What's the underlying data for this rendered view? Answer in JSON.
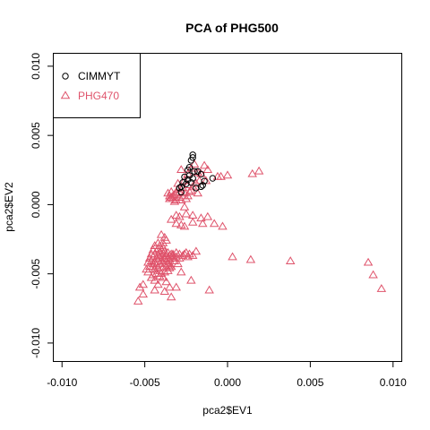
{
  "chart_data": {
    "type": "scatter",
    "title": "PCA of PHG500",
    "xlabel": "pca2$EV1",
    "ylabel": "pca2$EV2",
    "xlim": [
      -0.0105,
      0.0105
    ],
    "ylim": [
      -0.0113,
      0.0109
    ],
    "x_ticks": [
      "-0.010",
      "-0.005",
      "0.000",
      "0.005",
      "0.010"
    ],
    "x_tick_values": [
      -0.01,
      -0.005,
      0.0,
      0.005,
      0.01
    ],
    "y_ticks": [
      "-0.010",
      "-0.005",
      "0.000",
      "0.005",
      "0.010"
    ],
    "y_tick_values": [
      -0.01,
      -0.005,
      0.0,
      0.005,
      0.01
    ],
    "grid": false,
    "legend_position": "top-left",
    "series": [
      {
        "name": "PHG470",
        "marker": "triangle",
        "color": "#DF536B",
        "points": [
          [
            -0.0028,
            0.0025
          ],
          [
            -0.0024,
            0.0022
          ],
          [
            -0.0022,
            0.0026
          ],
          [
            -0.002,
            0.0029
          ],
          [
            -0.0018,
            0.0023
          ],
          [
            -0.0016,
            0.0022
          ],
          [
            -0.0014,
            0.0028
          ],
          [
            -0.0012,
            0.0025
          ],
          [
            -0.0017,
            0.0017
          ],
          [
            -0.0013,
            0.0017
          ],
          [
            -0.0026,
            0.0017
          ],
          [
            -0.0024,
            0.0014
          ],
          [
            -0.0022,
            0.001
          ],
          [
            -0.0027,
            0.0012
          ],
          [
            -0.0029,
            0.0009
          ],
          [
            -0.003,
            0.0011
          ],
          [
            -0.0031,
            0.0008
          ],
          [
            -0.0032,
            0.0007
          ],
          [
            -0.0033,
            0.0006
          ],
          [
            -0.0034,
            0.0005
          ],
          [
            -0.0035,
            0.0004
          ],
          [
            -0.0033,
            0.0004
          ],
          [
            -0.0031,
            0.0003
          ],
          [
            -0.0029,
            0.0005
          ],
          [
            -0.0028,
            0.0003
          ],
          [
            -0.0027,
            0.0006
          ],
          [
            -0.0025,
            0.0004
          ],
          [
            -0.0024,
            0.0006
          ],
          [
            -0.0023,
            0.0009
          ],
          [
            -0.0026,
            0.0008
          ],
          [
            -0.0036,
            0.0008
          ],
          [
            -0.0034,
            0.0009
          ],
          [
            -0.003,
            0.0015
          ],
          [
            -0.0035,
            0.0006
          ],
          [
            -0.0032,
            0.0002
          ],
          [
            -0.0006,
            0.002
          ],
          [
            -0.0004,
            0.002
          ],
          [
            0.0,
            0.0021
          ],
          [
            0.0015,
            0.0022
          ],
          [
            0.0019,
            0.0024
          ],
          [
            -0.0019,
            0.0015
          ],
          [
            -0.0018,
            0.0008
          ],
          [
            -0.0021,
            0.0013
          ],
          [
            -0.0026,
            -0.0002
          ],
          [
            -0.0025,
            -0.0007
          ],
          [
            -0.0031,
            -0.0008
          ],
          [
            -0.0029,
            -0.0009
          ],
          [
            -0.0021,
            -0.0008
          ],
          [
            -0.0012,
            -0.0009
          ],
          [
            -0.0016,
            -0.001
          ],
          [
            -0.0031,
            -0.0014
          ],
          [
            -0.0028,
            -0.0015
          ],
          [
            -0.0026,
            -0.0016
          ],
          [
            -0.0034,
            -0.0011
          ],
          [
            -0.0021,
            -0.0013
          ],
          [
            -0.0015,
            -0.0014
          ],
          [
            -0.0008,
            -0.0014
          ],
          [
            -0.0003,
            -0.0016
          ],
          [
            -0.004,
            -0.0022
          ],
          [
            -0.0038,
            -0.0024
          ],
          [
            -0.0037,
            -0.0026
          ],
          [
            -0.0039,
            -0.0028
          ],
          [
            -0.0041,
            -0.003
          ],
          [
            -0.0042,
            -0.0032
          ],
          [
            -0.0043,
            -0.0034
          ],
          [
            -0.0044,
            -0.0036
          ],
          [
            -0.0045,
            -0.0038
          ],
          [
            -0.0043,
            -0.0039
          ],
          [
            -0.0042,
            -0.0037
          ],
          [
            -0.0041,
            -0.0035
          ],
          [
            -0.004,
            -0.0033
          ],
          [
            -0.0039,
            -0.0031
          ],
          [
            -0.0038,
            -0.0034
          ],
          [
            -0.0037,
            -0.0036
          ],
          [
            -0.0036,
            -0.0035
          ],
          [
            -0.0035,
            -0.0037
          ],
          [
            -0.0034,
            -0.0036
          ],
          [
            -0.0033,
            -0.0037
          ],
          [
            -0.0031,
            -0.0035
          ],
          [
            -0.0029,
            -0.0036
          ],
          [
            -0.0027,
            -0.0037
          ],
          [
            -0.0025,
            -0.0035
          ],
          [
            -0.0023,
            -0.0036
          ],
          [
            -0.0021,
            -0.0037
          ],
          [
            -0.0046,
            -0.0041
          ],
          [
            -0.0045,
            -0.0043
          ],
          [
            -0.0044,
            -0.0042
          ],
          [
            -0.0043,
            -0.0044
          ],
          [
            -0.0041,
            -0.0043
          ],
          [
            -0.004,
            -0.0041
          ],
          [
            -0.0039,
            -0.0042
          ],
          [
            -0.0038,
            -0.004
          ],
          [
            -0.0037,
            -0.0041
          ],
          [
            -0.0036,
            -0.0039
          ],
          [
            -0.0035,
            -0.004
          ],
          [
            -0.0034,
            -0.0038
          ],
          [
            -0.0033,
            -0.0039
          ],
          [
            -0.0042,
            -0.0046
          ],
          [
            -0.0044,
            -0.0047
          ],
          [
            -0.0041,
            -0.0048
          ],
          [
            -0.0039,
            -0.0046
          ],
          [
            -0.0037,
            -0.0045
          ],
          [
            -0.0035,
            -0.0044
          ],
          [
            -0.0043,
            -0.005
          ],
          [
            -0.0045,
            -0.0051
          ],
          [
            -0.004,
            -0.005
          ],
          [
            -0.0038,
            -0.0049
          ],
          [
            -0.0036,
            -0.0048
          ],
          [
            -0.0046,
            -0.0053
          ],
          [
            -0.0044,
            -0.0055
          ],
          [
            -0.0047,
            -0.0045
          ],
          [
            -0.0048,
            -0.0049
          ],
          [
            -0.0049,
            -0.0047
          ],
          [
            -0.0041,
            -0.0052
          ],
          [
            -0.0039,
            -0.0053
          ],
          [
            -0.0033,
            -0.0036
          ],
          [
            -0.0031,
            -0.0038
          ],
          [
            -0.0029,
            -0.0039
          ],
          [
            -0.0032,
            -0.0041
          ],
          [
            -0.003,
            -0.0043
          ],
          [
            -0.0034,
            -0.0045
          ],
          [
            -0.0036,
            -0.0043
          ],
          [
            -0.0035,
            -0.0046
          ],
          [
            -0.0045,
            -0.0033
          ],
          [
            -0.0046,
            -0.0036
          ],
          [
            -0.0044,
            -0.003
          ],
          [
            -0.0042,
            -0.0028
          ],
          [
            -0.0047,
            -0.0039
          ],
          [
            -0.0048,
            -0.0042
          ],
          [
            -0.0045,
            -0.0045
          ],
          [
            -0.0042,
            -0.004
          ],
          [
            -0.0041,
            -0.0038
          ],
          [
            -0.0039,
            -0.0037
          ],
          [
            -0.0038,
            -0.0039
          ],
          [
            -0.0037,
            -0.0038
          ],
          [
            -0.0026,
            -0.0036
          ],
          [
            -0.0024,
            -0.0038
          ],
          [
            -0.0019,
            -0.0034
          ],
          [
            0.0003,
            -0.0038
          ],
          [
            0.0014,
            -0.004
          ],
          [
            0.0038,
            -0.0041
          ],
          [
            0.0085,
            -0.0042
          ],
          [
            0.0088,
            -0.0051
          ],
          [
            0.0093,
            -0.0061
          ],
          [
            -0.0028,
            -0.0049
          ],
          [
            -0.0022,
            -0.0055
          ],
          [
            -0.0037,
            -0.0056
          ],
          [
            -0.0042,
            -0.0058
          ],
          [
            -0.0051,
            -0.0058
          ],
          [
            -0.0053,
            -0.006
          ],
          [
            -0.0051,
            -0.0065
          ],
          [
            -0.0054,
            -0.007
          ],
          [
            -0.0044,
            -0.0062
          ],
          [
            -0.0038,
            -0.0063
          ],
          [
            -0.0035,
            -0.006
          ],
          [
            -0.0031,
            -0.006
          ],
          [
            -0.0034,
            -0.0067
          ],
          [
            -0.0011,
            -0.0062
          ]
        ]
      },
      {
        "name": "CIMMYT",
        "marker": "circle",
        "color": "#000000",
        "points": [
          [
            -0.0021,
            0.0036
          ],
          [
            -0.0021,
            0.0034
          ],
          [
            -0.0022,
            0.0032
          ],
          [
            -0.0023,
            0.0027
          ],
          [
            -0.0024,
            0.0025
          ],
          [
            -0.002,
            0.0024
          ],
          [
            -0.0018,
            0.0024
          ],
          [
            -0.0016,
            0.0022
          ],
          [
            -0.0026,
            0.002
          ],
          [
            -0.0027,
            0.0016
          ],
          [
            -0.0028,
            0.0013
          ],
          [
            -0.0029,
            0.0012
          ],
          [
            -0.0028,
            0.0009
          ],
          [
            -0.0022,
            0.0016
          ],
          [
            -0.0019,
            0.0012
          ],
          [
            -0.0016,
            0.0013
          ],
          [
            -0.0009,
            0.0019
          ],
          [
            -0.0015,
            0.0014
          ],
          [
            -0.0021,
            0.0019
          ],
          [
            -0.0024,
            0.0018
          ],
          [
            -0.0025,
            0.0015
          ],
          [
            -0.0014,
            0.0017
          ],
          [
            -0.0023,
            0.0021
          ]
        ]
      }
    ]
  }
}
